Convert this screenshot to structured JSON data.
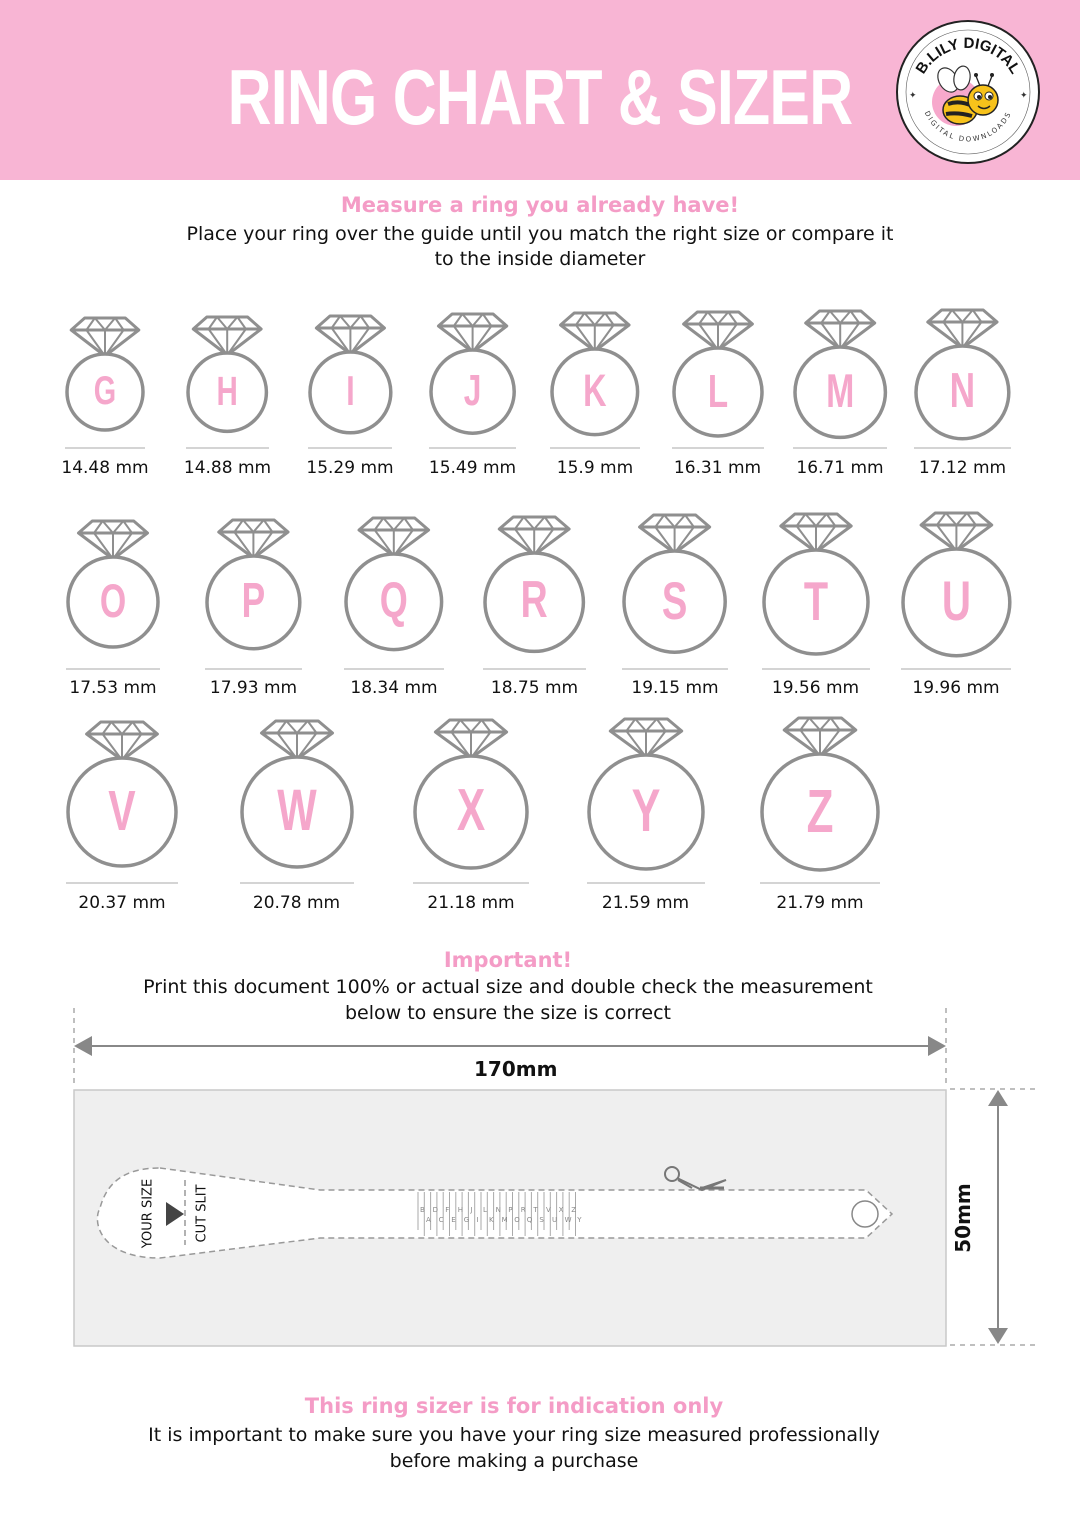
{
  "header": {
    "title": "RING CHART & SIZER",
    "logo_text_top": "B.LILY DIGITAL",
    "logo_text_bottom": "DIGITAL DOWNLOADS",
    "bg_color": "#f8b5d4"
  },
  "intro": {
    "heading": "Measure a ring you already have!",
    "line1": "Place your ring over the guide until you match the right size or compare it",
    "line2": "to the inside diameter"
  },
  "rings": [
    {
      "letter": "G",
      "size": "14.48 mm"
    },
    {
      "letter": "H",
      "size": "14.88 mm"
    },
    {
      "letter": "I",
      "size": "15.29 mm"
    },
    {
      "letter": "J",
      "size": "15.49 mm"
    },
    {
      "letter": "K",
      "size": "15.9 mm"
    },
    {
      "letter": "L",
      "size": "16.31 mm"
    },
    {
      "letter": "M",
      "size": "16.71 mm"
    },
    {
      "letter": "N",
      "size": "17.12 mm"
    },
    {
      "letter": "O",
      "size": "17.53 mm"
    },
    {
      "letter": "P",
      "size": "17.93 mm"
    },
    {
      "letter": "Q",
      "size": "18.34 mm"
    },
    {
      "letter": "R",
      "size": "18.75 mm"
    },
    {
      "letter": "S",
      "size": "19.15 mm"
    },
    {
      "letter": "T",
      "size": "19.56 mm"
    },
    {
      "letter": "U",
      "size": "19.96 mm"
    },
    {
      "letter": "V",
      "size": "20.37 mm"
    },
    {
      "letter": "W",
      "size": "20.78 mm"
    },
    {
      "letter": "X",
      "size": "21.18 mm"
    },
    {
      "letter": "Y",
      "size": "21.59 mm"
    },
    {
      "letter": "Z",
      "size": "21.79 mm"
    }
  ],
  "important": {
    "heading": "Important!",
    "line1": "Print this document 100% or actual size and double check the measurement",
    "line2": "below to ensure the size is correct"
  },
  "sizer": {
    "width_label": "170mm",
    "height_label": "50mm",
    "your_size_label": "YOUR SIZE",
    "cut_slit_label": "CUT SLIT",
    "letters": [
      "B",
      "D",
      "F",
      "H",
      "J",
      "L",
      "N",
      "P",
      "R",
      "T",
      "V",
      "X",
      "Z",
      "A",
      "C",
      "E",
      "G",
      "I",
      "K",
      "M",
      "O",
      "Q",
      "S",
      "U",
      "W",
      "Y"
    ]
  },
  "disclaimer": {
    "heading": "This ring sizer is for indication only",
    "line1": "It is important to make sure you have your ring size measured professionally",
    "line2": "before making a purchase"
  },
  "colors": {
    "pink": "#f49cc6",
    "letter_pink": "#f5a7cb",
    "ring_gray": "#8f8f8f",
    "panel_gray": "#efefef"
  }
}
